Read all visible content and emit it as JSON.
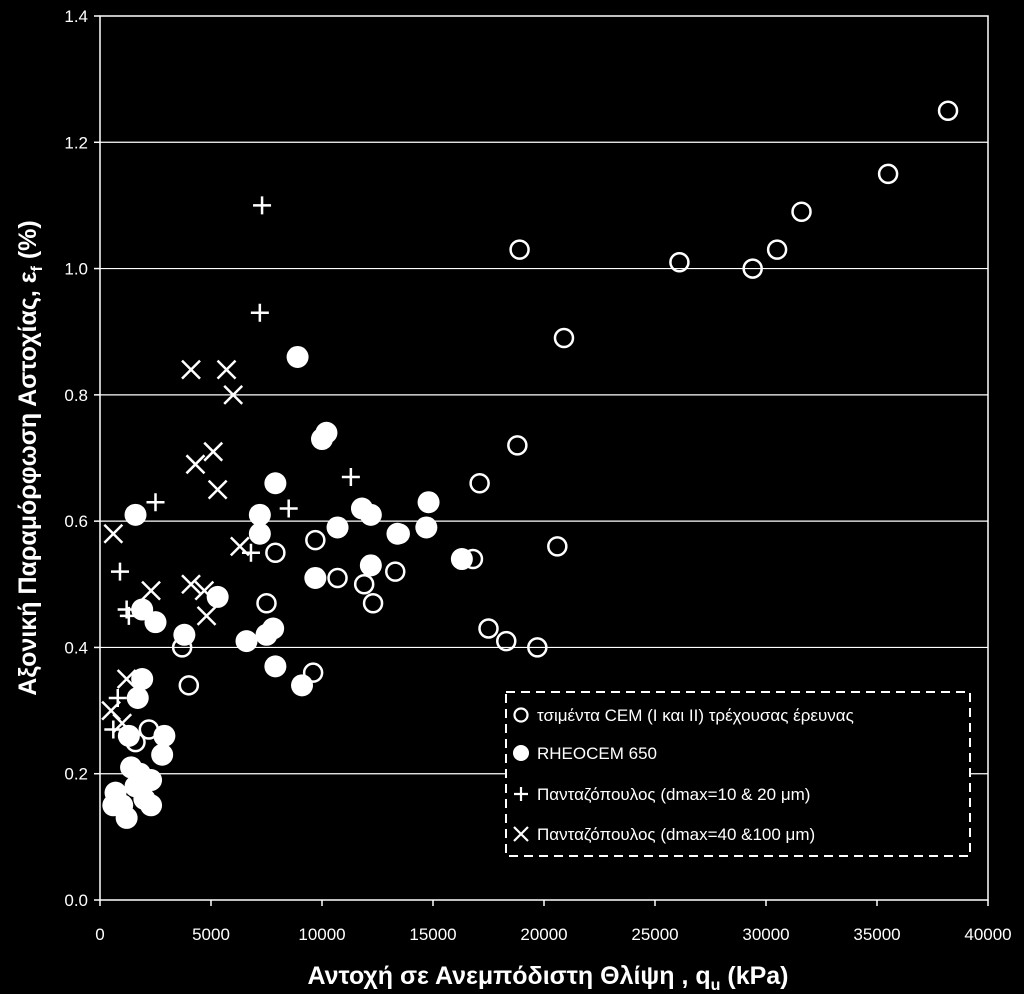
{
  "chart_data": {
    "type": "scatter",
    "xlabel": "Αντοχή σε Ανεμπόδιστη Θλίψη , q",
    "xlabel_sub": "u",
    "xlabel_unit": " (kPa)",
    "ylabel": "Αξονική Παραμόρφωση Αστοχίας, ε",
    "ylabel_sub": "f",
    "ylabel_unit": " (%)",
    "xlim": [
      0,
      40000
    ],
    "ylim": [
      0,
      1.4
    ],
    "x_ticks": [
      "0",
      "5000",
      "10000",
      "15000",
      "20000",
      "25000",
      "30000",
      "35000",
      "40000"
    ],
    "y_ticks": [
      "0.0",
      "0.2",
      "0.4",
      "0.6",
      "0.8",
      "1.0",
      "1.2",
      "1.4"
    ],
    "grid": "horizontal",
    "legend_position": "bottom-right",
    "series": [
      {
        "name": "τσιμέντα CEM (I και II) τρέχουσας έρευνας",
        "marker": "open-circle",
        "points": [
          [
            38200,
            1.25
          ],
          [
            35500,
            1.15
          ],
          [
            31600,
            1.09
          ],
          [
            30500,
            1.03
          ],
          [
            29400,
            1.0
          ],
          [
            26100,
            1.01
          ],
          [
            18900,
            1.03
          ],
          [
            20900,
            0.89
          ],
          [
            18800,
            0.72
          ],
          [
            17100,
            0.66
          ],
          [
            20600,
            0.56
          ],
          [
            16800,
            0.54
          ],
          [
            17500,
            0.43
          ],
          [
            18300,
            0.41
          ],
          [
            19700,
            0.4
          ],
          [
            13500,
            0.58
          ],
          [
            9700,
            0.57
          ],
          [
            7900,
            0.55
          ],
          [
            13300,
            0.52
          ],
          [
            10700,
            0.51
          ],
          [
            11900,
            0.5
          ],
          [
            12300,
            0.47
          ],
          [
            7500,
            0.47
          ],
          [
            9600,
            0.36
          ],
          [
            3700,
            0.4
          ],
          [
            4000,
            0.34
          ],
          [
            2200,
            0.27
          ],
          [
            1600,
            0.25
          ]
        ]
      },
      {
        "name": "RHEOCEM 650",
        "marker": "filled-circle",
        "points": [
          [
            8900,
            0.86
          ],
          [
            10200,
            0.74
          ],
          [
            10000,
            0.73
          ],
          [
            7900,
            0.66
          ],
          [
            1600,
            0.61
          ],
          [
            7200,
            0.61
          ],
          [
            11800,
            0.62
          ],
          [
            12200,
            0.61
          ],
          [
            14800,
            0.63
          ],
          [
            10700,
            0.59
          ],
          [
            14700,
            0.59
          ],
          [
            7200,
            0.58
          ],
          [
            13400,
            0.58
          ],
          [
            16300,
            0.54
          ],
          [
            12200,
            0.53
          ],
          [
            9700,
            0.51
          ],
          [
            5300,
            0.48
          ],
          [
            1900,
            0.46
          ],
          [
            2500,
            0.44
          ],
          [
            3800,
            0.42
          ],
          [
            7500,
            0.42
          ],
          [
            7800,
            0.43
          ],
          [
            6600,
            0.41
          ],
          [
            7900,
            0.37
          ],
          [
            9100,
            0.34
          ],
          [
            1900,
            0.35
          ],
          [
            1700,
            0.32
          ],
          [
            1300,
            0.26
          ],
          [
            2900,
            0.26
          ],
          [
            2800,
            0.23
          ],
          [
            1400,
            0.21
          ],
          [
            1800,
            0.2
          ],
          [
            2300,
            0.19
          ],
          [
            1600,
            0.18
          ],
          [
            700,
            0.17
          ],
          [
            2000,
            0.16
          ],
          [
            600,
            0.15
          ],
          [
            1000,
            0.15
          ],
          [
            2300,
            0.15
          ],
          [
            1200,
            0.13
          ]
        ]
      },
      {
        "name": "Πανταζόπουλος (dmax=10 & 20 μm)",
        "marker": "plus",
        "points": [
          [
            7300,
            1.1
          ],
          [
            7200,
            0.93
          ],
          [
            11300,
            0.67
          ],
          [
            2500,
            0.63
          ],
          [
            8500,
            0.62
          ],
          [
            900,
            0.52
          ],
          [
            6800,
            0.55
          ],
          [
            1200,
            0.46
          ],
          [
            1300,
            0.45
          ],
          [
            800,
            0.32
          ],
          [
            600,
            0.27
          ]
        ]
      },
      {
        "name": "Πανταζόπουλος (dmax=40 &100 μm)",
        "marker": "cross",
        "points": [
          [
            4100,
            0.84
          ],
          [
            5700,
            0.84
          ],
          [
            6000,
            0.8
          ],
          [
            4300,
            0.69
          ],
          [
            5100,
            0.71
          ],
          [
            5300,
            0.65
          ],
          [
            600,
            0.58
          ],
          [
            6300,
            0.56
          ],
          [
            2300,
            0.49
          ],
          [
            4100,
            0.5
          ],
          [
            4700,
            0.49
          ],
          [
            4800,
            0.45
          ],
          [
            1200,
            0.35
          ],
          [
            500,
            0.3
          ],
          [
            1000,
            0.28
          ]
        ]
      }
    ]
  }
}
